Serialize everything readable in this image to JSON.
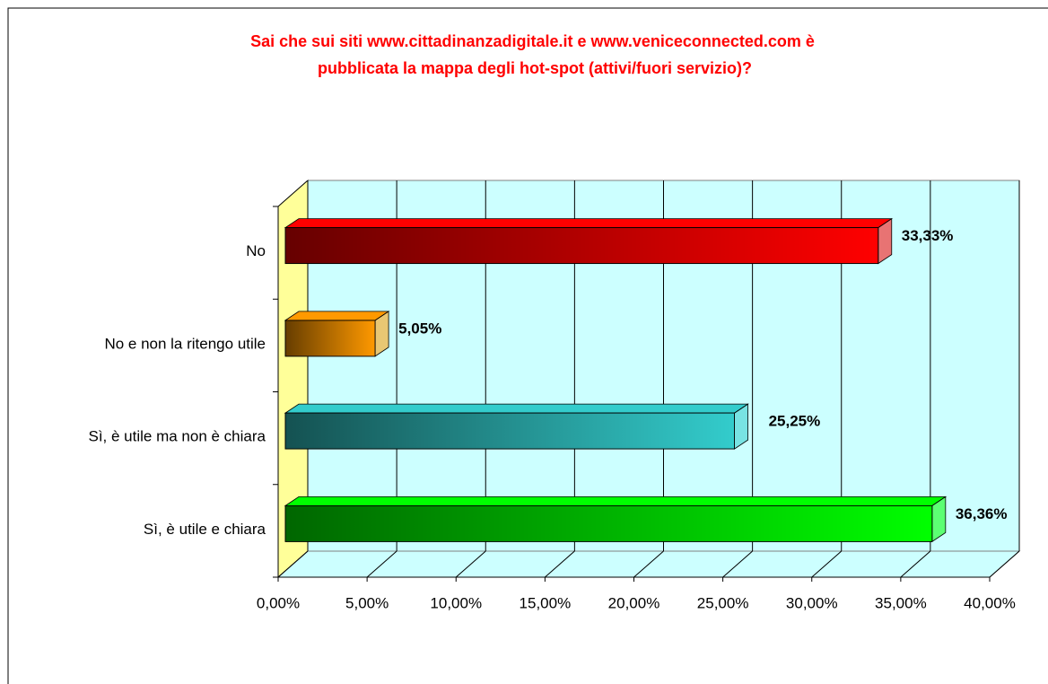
{
  "chart_data": {
    "type": "bar3d-horizontal",
    "title": "Sai che sui siti www.cittadinanzadigitale.it e www.veniceconnected.com è pubblicata la mappa degli hot-spot (attivi/fuori servizio)?",
    "categories": [
      "No",
      "No e non la ritengo utile",
      "Sì, è utile ma non è chiara",
      "Sì, è utile e chiara"
    ],
    "values": [
      33.33,
      5.05,
      25.25,
      36.36
    ],
    "value_labels": [
      "33,33%",
      "5,05%",
      "25,25%",
      "36,36%"
    ],
    "colors": [
      "#ff0000",
      "#ff9900",
      "#33cccc",
      "#00ff00"
    ],
    "xlim": [
      0,
      40
    ],
    "xticks": [
      {
        "value": 0,
        "label": "0,00%"
      },
      {
        "value": 5,
        "label": "5,00%"
      },
      {
        "value": 10,
        "label": "10,00%"
      },
      {
        "value": 15,
        "label": "15,00%"
      },
      {
        "value": 20,
        "label": "20,00%"
      },
      {
        "value": 25,
        "label": "25,00%"
      },
      {
        "value": 30,
        "label": "30,00%"
      },
      {
        "value": 35,
        "label": "35,00%"
      },
      {
        "value": 40,
        "label": "40,00%"
      }
    ],
    "grid": true
  }
}
